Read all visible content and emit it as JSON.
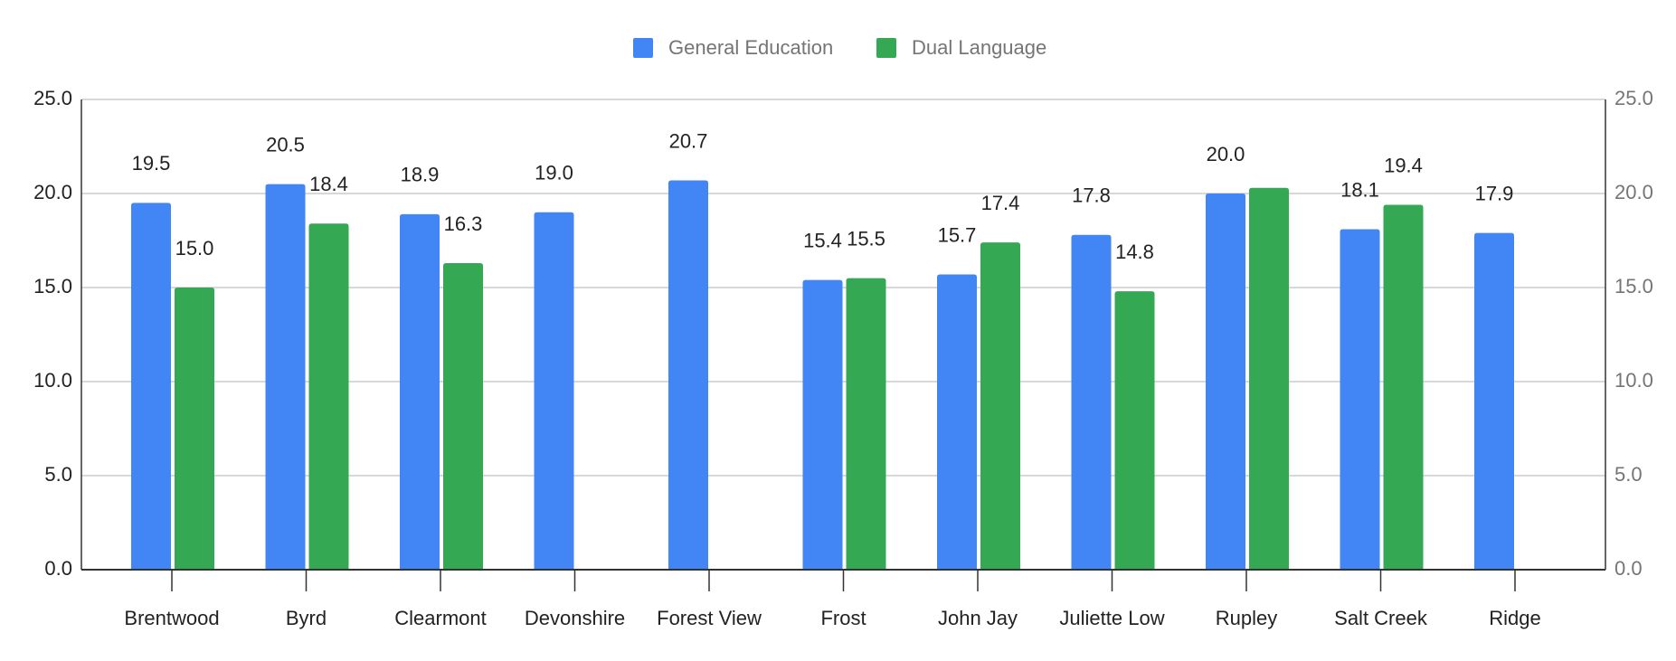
{
  "chart_data": {
    "type": "bar",
    "categories": [
      "Brentwood",
      "Byrd",
      "Clearmont",
      "Devonshire",
      "Forest View",
      "Frost",
      "John Jay",
      "Juliette Low",
      "Rupley",
      "Salt Creek",
      "Ridge"
    ],
    "series": [
      {
        "name": "General Education",
        "color": "#4285f4",
        "values": [
          19.5,
          20.5,
          18.9,
          19.0,
          20.7,
          15.4,
          15.7,
          17.8,
          20.0,
          18.1,
          17.9
        ],
        "value_labels": [
          "19.5",
          "20.5",
          "18.9",
          "19.0",
          "20.7",
          "15.4",
          "15.7",
          "17.8",
          "20.0",
          "18.1",
          "17.9"
        ]
      },
      {
        "name": "Dual Language",
        "color": "#34a853",
        "values": [
          15.0,
          18.4,
          16.3,
          null,
          null,
          15.5,
          17.4,
          14.8,
          20.3,
          19.4,
          null
        ],
        "value_labels": [
          "15.0",
          "18.4",
          "16.3",
          null,
          null,
          "15.5",
          "17.4",
          "14.8",
          null,
          "19.4",
          null
        ]
      }
    ],
    "ylim": [
      0,
      25
    ],
    "yticks": [
      {
        "value": 0,
        "label": "0.0"
      },
      {
        "value": 5,
        "label": "5.0"
      },
      {
        "value": 10,
        "label": "10.0"
      },
      {
        "value": 15,
        "label": "15.0"
      },
      {
        "value": 20,
        "label": "20.0"
      },
      {
        "value": 25,
        "label": "25.0"
      }
    ],
    "y2lim": [
      0,
      25
    ],
    "y2ticks": [
      {
        "value": 0,
        "label": "0.0"
      },
      {
        "value": 5,
        "label": "5.0"
      },
      {
        "value": 10,
        "label": "10.0"
      },
      {
        "value": 15,
        "label": "15.0"
      },
      {
        "value": 20,
        "label": "20.0"
      },
      {
        "value": 25,
        "label": "25.0"
      }
    ],
    "grid": true,
    "legend": "top"
  }
}
